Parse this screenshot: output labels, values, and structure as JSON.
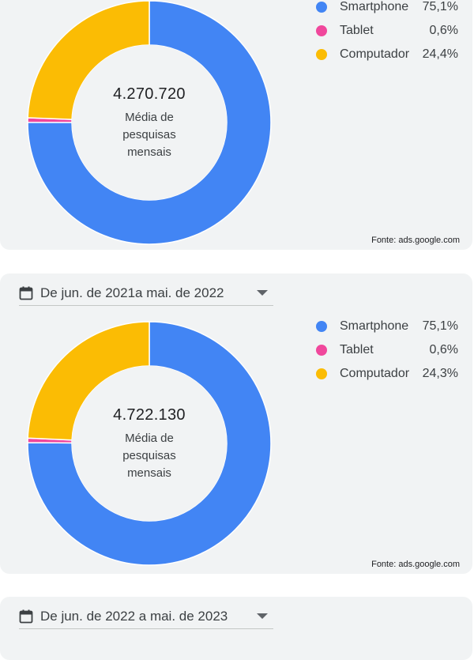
{
  "colors": {
    "smartphone": "#4285f4",
    "tablet": "#f0479c",
    "computer": "#fbbc04"
  },
  "icons": {
    "calendar": "calendar-icon",
    "dropdown": "caret-down-icon"
  },
  "chart_data": [
    {
      "type": "pie",
      "variant": "donut",
      "date_range": "",
      "center_total": "4.270.720",
      "center_label": [
        "Média de",
        "pesquisas",
        "mensais"
      ],
      "source": "Fonte: ads.google.com",
      "legend_position": "top-right",
      "series": [
        {
          "name": "Smartphone",
          "value": 75.1,
          "display": "75,1%"
        },
        {
          "name": "Tablet",
          "value": 0.6,
          "display": "0,6%"
        },
        {
          "name": "Computador",
          "value": 24.4,
          "display": "24,4%"
        }
      ]
    },
    {
      "type": "pie",
      "variant": "donut",
      "date_range": "De jun. de 2021a mai. de 2022",
      "center_total": "4.722.130",
      "center_label": [
        "Média de",
        "pesquisas",
        "mensais"
      ],
      "source": "Fonte: ads.google.com",
      "legend_position": "top-right",
      "series": [
        {
          "name": "Smartphone",
          "value": 75.1,
          "display": "75,1%"
        },
        {
          "name": "Tablet",
          "value": 0.6,
          "display": "0,6%"
        },
        {
          "name": "Computador",
          "value": 24.3,
          "display": "24,3%"
        }
      ]
    },
    {
      "type": "pie",
      "variant": "donut",
      "date_range": "De jun. de 2022 a mai. de 2023",
      "series": []
    }
  ]
}
